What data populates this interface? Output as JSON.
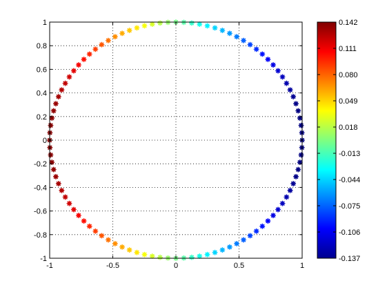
{
  "chart_data": {
    "type": "scatter",
    "marker": "*",
    "grid": true,
    "grid_style": "dotted",
    "xlim": [
      -1,
      1
    ],
    "ylim": [
      -1,
      1
    ],
    "x_ticks": [
      "-1",
      "-0.5",
      "0",
      "0.5",
      "1"
    ],
    "x_tick_values": [
      -1,
      -0.5,
      0,
      0.5,
      1
    ],
    "y_ticks": [
      "-1",
      "-0.8",
      "-0.6",
      "-0.4",
      "-0.2",
      "0",
      "0.2",
      "0.4",
      "0.6",
      "0.8",
      "1"
    ],
    "y_tick_values": [
      -1,
      -0.8,
      -0.6,
      -0.4,
      -0.2,
      0,
      0.2,
      0.4,
      0.6,
      0.8,
      1
    ],
    "points": {
      "count": 100,
      "shape": "unit circle",
      "x": "cos(theta)",
      "y": "sin(theta)",
      "color_value": "-0.142 * cos(theta)"
    },
    "colorbar": {
      "colormap": "jet",
      "clim": [
        -0.137,
        0.142
      ],
      "tick_labels": [
        "0.142",
        "0.111",
        "0.080",
        "0.049",
        "0.018",
        "-0.013",
        "-0.044",
        "-0.075",
        "-0.106",
        "-0.137"
      ],
      "tick_values": [
        0.142,
        0.111,
        0.08,
        0.049,
        0.018,
        -0.013,
        -0.044,
        -0.075,
        -0.106,
        -0.137
      ]
    }
  }
}
